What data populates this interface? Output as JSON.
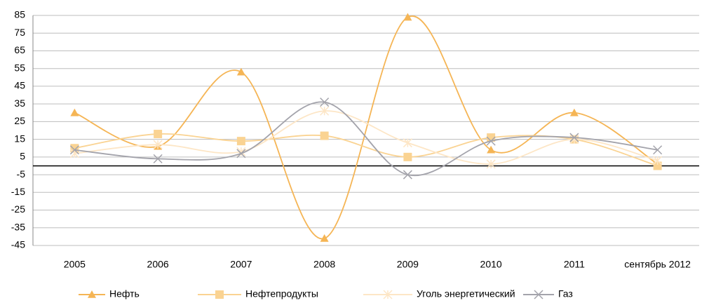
{
  "chart_data": {
    "type": "line",
    "categories": [
      "2005",
      "2006",
      "2007",
      "2008",
      "2009",
      "2010",
      "2011",
      "сентябрь 2012"
    ],
    "series": [
      {
        "name": "Нефть",
        "color": "#f5b555",
        "marker": "triangle",
        "values": [
          30,
          11,
          53,
          -41,
          84,
          9,
          30,
          1
        ]
      },
      {
        "name": "Нефтепродукты",
        "color": "#fad392",
        "marker": "square",
        "values": [
          10,
          18,
          14,
          17,
          5,
          16,
          15,
          0
        ]
      },
      {
        "name": "Уголь энергетический",
        "color": "#fde6c6",
        "marker": "star",
        "values": [
          7,
          12,
          8,
          31,
          13,
          1,
          15,
          3
        ]
      },
      {
        "name": "Газ",
        "color": "#a3a3ab",
        "marker": "x",
        "values": [
          9,
          4,
          7,
          36,
          -5,
          14,
          16,
          9
        ]
      }
    ],
    "ylim": [
      -45,
      85
    ],
    "yticks": [
      -45,
      -35,
      -25,
      -15,
      -5,
      5,
      15,
      25,
      35,
      45,
      55,
      65,
      75,
      85
    ],
    "grid": true,
    "legend": "bottom"
  }
}
